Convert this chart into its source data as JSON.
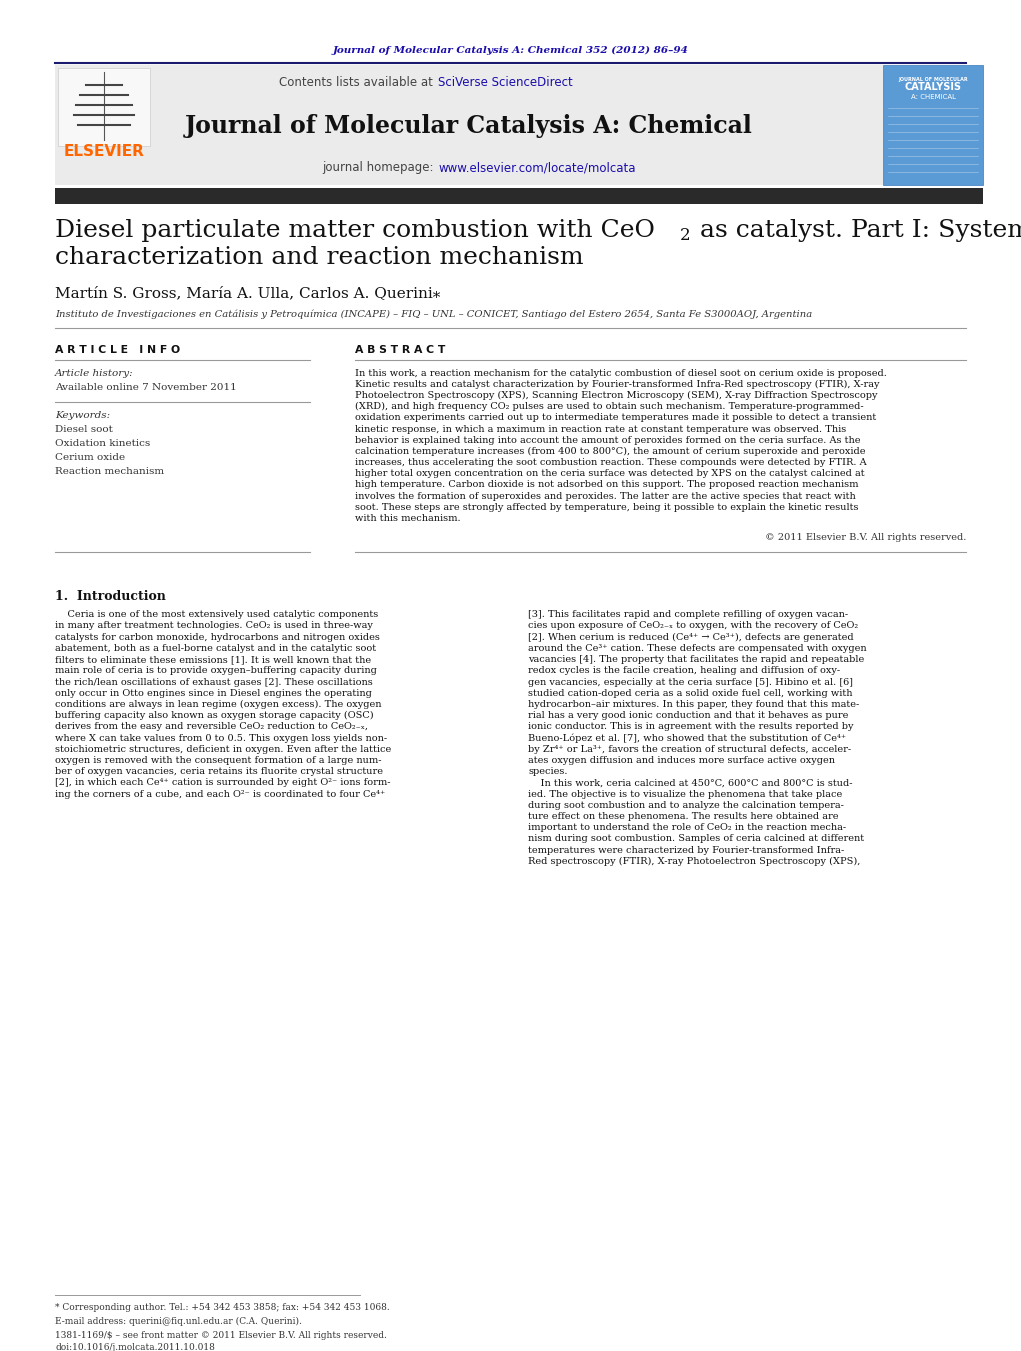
{
  "page_bg": "#ffffff",
  "top_journal_ref": "Journal of Molecular Catalysis A: Chemical 352 (2012) 86–94",
  "top_journal_ref_color": "#1a0dab",
  "header_text": "Contents lists available at",
  "header_sciverse": "SciVerse ScienceDirect",
  "header_sciverse_color": "#1a0dab",
  "journal_title": "Journal of Molecular Catalysis A: Chemical",
  "journal_homepage_label": "journal homepage:",
  "journal_homepage_url": "www.elsevier.com/locate/molcata",
  "journal_homepage_color": "#1a0dab",
  "elsevier_color": "#FF6600",
  "dark_bar_color": "#2a2a2a",
  "article_title_line1": "Diesel particulate matter combustion with CeO",
  "article_title_sub": "2",
  "article_title_line1_cont": " as catalyst. Part I: System",
  "article_title_line2": "characterization and reaction mechanism",
  "authors": "Martín S. Gross, María A. Ulla, Carlos A. Querini",
  "affiliation": "Instituto de Investigaciones en Catálisis y Petroquímica (INCAPE) – FIQ – UNL – CONICET, Santiago del Estero 2654, Santa Fe S3000AOJ, Argentina",
  "article_info_header": "A R T I C L E   I N F O",
  "article_history_label": "Article history:",
  "available_online": "Available online 7 November 2011",
  "keywords_label": "Keywords:",
  "keywords": [
    "Diesel soot",
    "Oxidation kinetics",
    "Cerium oxide",
    "Reaction mechanism"
  ],
  "abstract_header": "A B S T R A C T",
  "copyright": "© 2011 Elsevier B.V. All rights reserved.",
  "intro_header": "1.  Introduction",
  "footnote_star": "* Corresponding author. Tel.: +54 342 453 3858; fax: +54 342 453 1068.",
  "footnote_email": "E-mail address: querini@fiq.unl.edu.ar (C.A. Querini).",
  "footnote_issn": "1381-1169/$ – see front matter © 2011 Elsevier B.V. All rights reserved.",
  "footnote_doi": "doi:10.1016/j.molcata.2011.10.018",
  "abstract_lines": [
    "In this work, a reaction mechanism for the catalytic combustion of diesel soot on cerium oxide is proposed.",
    "Kinetic results and catalyst characterization by Fourier-transformed Infra-Red spectroscopy (FTIR), X-ray",
    "Photoelectron Spectroscopy (XPS), Scanning Electron Microscopy (SEM), X-ray Diffraction Spectroscopy",
    "(XRD), and high frequency CO₂ pulses are used to obtain such mechanism. Temperature-programmed-",
    "oxidation experiments carried out up to intermediate temperatures made it possible to detect a transient",
    "kinetic response, in which a maximum in reaction rate at constant temperature was observed. This",
    "behavior is explained taking into account the amount of peroxides formed on the ceria surface. As the",
    "calcination temperature increases (from 400 to 800°C), the amount of cerium superoxide and peroxide",
    "increases, thus accelerating the soot combustion reaction. These compounds were detected by FTIR. A",
    "higher total oxygen concentration on the ceria surface was detected by XPS on the catalyst calcined at",
    "high temperature. Carbon dioxide is not adsorbed on this support. The proposed reaction mechanism",
    "involves the formation of superoxides and peroxides. The latter are the active species that react with",
    "soot. These steps are strongly affected by temperature, being it possible to explain the kinetic results",
    "with this mechanism."
  ],
  "intro_lines_left": [
    "    Ceria is one of the most extensively used catalytic components",
    "in many after treatment technologies. CeO₂ is used in three-way",
    "catalysts for carbon monoxide, hydrocarbons and nitrogen oxides",
    "abatement, both as a fuel-borne catalyst and in the catalytic soot",
    "filters to eliminate these emissions [1]. It is well known that the",
    "main role of ceria is to provide oxygen–buffering capacity during",
    "the rich/lean oscillations of exhaust gases [2]. These oscillations",
    "only occur in Otto engines since in Diesel engines the operating",
    "conditions are always in lean regime (oxygen excess). The oxygen",
    "buffering capacity also known as oxygen storage capacity (OSC)",
    "derives from the easy and reversible CeO₂ reduction to CeO₂₋ₓ,",
    "where X can take values from 0 to 0.5. This oxygen loss yields non-",
    "stoichiometric structures, deficient in oxygen. Even after the lattice",
    "oxygen is removed with the consequent formation of a large num-",
    "ber of oxygen vacancies, ceria retains its fluorite crystal structure",
    "[2], in which each Ce⁴⁺ cation is surrounded by eight O²⁻ ions form-",
    "ing the corners of a cube, and each O²⁻ is coordinated to four Ce⁴⁺"
  ],
  "intro_lines_right": [
    "[3]. This facilitates rapid and complete refilling of oxygen vacan-",
    "cies upon exposure of CeO₂₋ₓ to oxygen, with the recovery of CeO₂",
    "[2]. When cerium is reduced (Ce⁴⁺ → Ce³⁺), defects are generated",
    "around the Ce³⁺ cation. These defects are compensated with oxygen",
    "vacancies [4]. The property that facilitates the rapid and repeatable",
    "redox cycles is the facile creation, healing and diffusion of oxy-",
    "gen vacancies, especially at the ceria surface [5]. Hibino et al. [6]",
    "studied cation-doped ceria as a solid oxide fuel cell, working with",
    "hydrocarbon–air mixtures. In this paper, they found that this mate-",
    "rial has a very good ionic conduction and that it behaves as pure",
    "ionic conductor. This is in agreement with the results reported by",
    "Bueno-López et al. [7], who showed that the substitution of Ce⁴⁺",
    "by Zr⁴⁺ or La³⁺, favors the creation of structural defects, acceler-",
    "ates oxygen diffusion and induces more surface active oxygen",
    "species.",
    "    In this work, ceria calcined at 450°C, 600°C and 800°C is stud-",
    "ied. The objective is to visualize the phenomena that take place",
    "during soot combustion and to analyze the calcination tempera-",
    "ture effect on these phenomena. The results here obtained are",
    "important to understand the role of CeO₂ in the reaction mecha-",
    "nism during soot combustion. Samples of ceria calcined at different",
    "temperatures were characterized by Fourier-transformed Infra-",
    "Red spectroscopy (FTIR), X-ray Photoelectron Spectroscopy (XPS),"
  ]
}
